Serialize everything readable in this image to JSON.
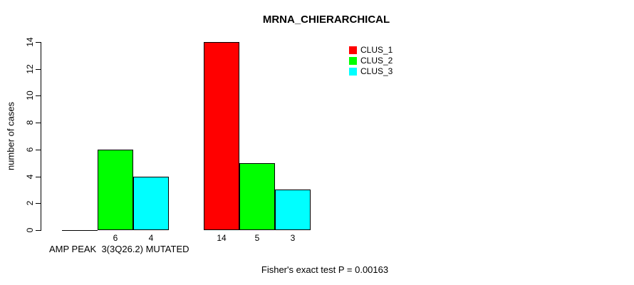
{
  "chart_data": {
    "type": "bar",
    "title": "MRNA_CHIERARCHICAL",
    "ylabel": "number of cases",
    "xlabel": "AMP PEAK  3(3Q26.2) MUTATED",
    "annotation": "Fisher's exact test P = 0.00163",
    "ylim": [
      0,
      14
    ],
    "yticks": [
      0,
      2,
      4,
      6,
      8,
      10,
      12,
      14
    ],
    "grid": false,
    "legend_position": "top-right-inside",
    "legend": [
      {
        "name": "CLUS_1",
        "color": "#ff0000"
      },
      {
        "name": "CLUS_2",
        "color": "#00ff00"
      },
      {
        "name": "CLUS_3",
        "color": "#00ffff"
      }
    ],
    "groups": [
      {
        "name": "group-1",
        "bars": [
          {
            "series": "CLUS_1",
            "value": 0,
            "label": ""
          },
          {
            "series": "CLUS_2",
            "value": 6,
            "label": "6"
          },
          {
            "series": "CLUS_3",
            "value": 4,
            "label": "4"
          }
        ]
      },
      {
        "name": "group-2",
        "bars": [
          {
            "series": "CLUS_1",
            "value": 14,
            "label": "14"
          },
          {
            "series": "CLUS_2",
            "value": 5,
            "label": "5"
          },
          {
            "series": "CLUS_3",
            "value": 3,
            "label": "3"
          }
        ]
      }
    ]
  }
}
